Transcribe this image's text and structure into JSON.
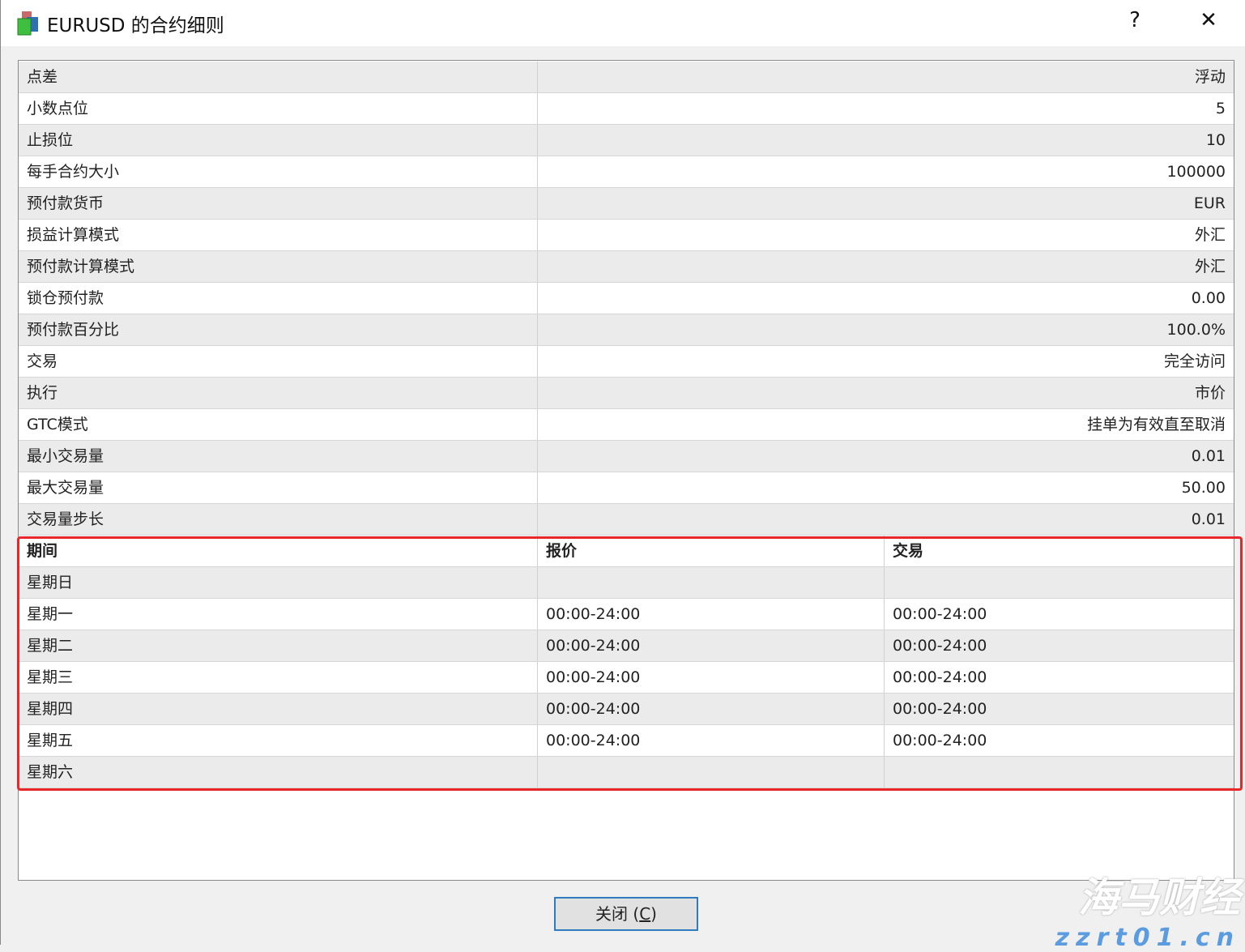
{
  "window": {
    "title": "EURUSD 的合约细则",
    "help_label": "?",
    "close_label": "✕"
  },
  "specs": [
    {
      "label": "点差",
      "value": "浮动"
    },
    {
      "label": "小数点位",
      "value": "5"
    },
    {
      "label": "止损位",
      "value": "10"
    },
    {
      "label": "每手合约大小",
      "value": "100000"
    },
    {
      "label": "预付款货币",
      "value": "EUR"
    },
    {
      "label": "损益计算模式",
      "value": "外汇"
    },
    {
      "label": "预付款计算模式",
      "value": "外汇"
    },
    {
      "label": "锁仓预付款",
      "value": "0.00"
    },
    {
      "label": "预付款百分比",
      "value": "100.0%"
    },
    {
      "label": "交易",
      "value": "完全访问"
    },
    {
      "label": "执行",
      "value": "市价"
    },
    {
      "label": "GTC模式",
      "value": "挂单为有效直至取消"
    },
    {
      "label": "最小交易量",
      "value": "0.01"
    },
    {
      "label": "最大交易量",
      "value": "50.00"
    },
    {
      "label": "交易量步长",
      "value": "0.01"
    }
  ],
  "sessions": {
    "headers": [
      "期间",
      "报价",
      "交易"
    ],
    "rows": [
      {
        "day": "星期日",
        "quote": "",
        "trade": ""
      },
      {
        "day": "星期一",
        "quote": "00:00-24:00",
        "trade": "00:00-24:00"
      },
      {
        "day": "星期二",
        "quote": "00:00-24:00",
        "trade": "00:00-24:00"
      },
      {
        "day": "星期三",
        "quote": "00:00-24:00",
        "trade": "00:00-24:00"
      },
      {
        "day": "星期四",
        "quote": "00:00-24:00",
        "trade": "00:00-24:00"
      },
      {
        "day": "星期五",
        "quote": "00:00-24:00",
        "trade": "00:00-24:00"
      },
      {
        "day": "星期六",
        "quote": "",
        "trade": ""
      }
    ]
  },
  "footer": {
    "close_button": "关闭 (",
    "close_hotkey": "C",
    "close_suffix": ")"
  },
  "watermark": {
    "line1": "海马财经",
    "line2": "zzrt01.cn"
  },
  "colors": {
    "highlight_box": "#e8272a",
    "button_border": "#2f7bbf"
  }
}
